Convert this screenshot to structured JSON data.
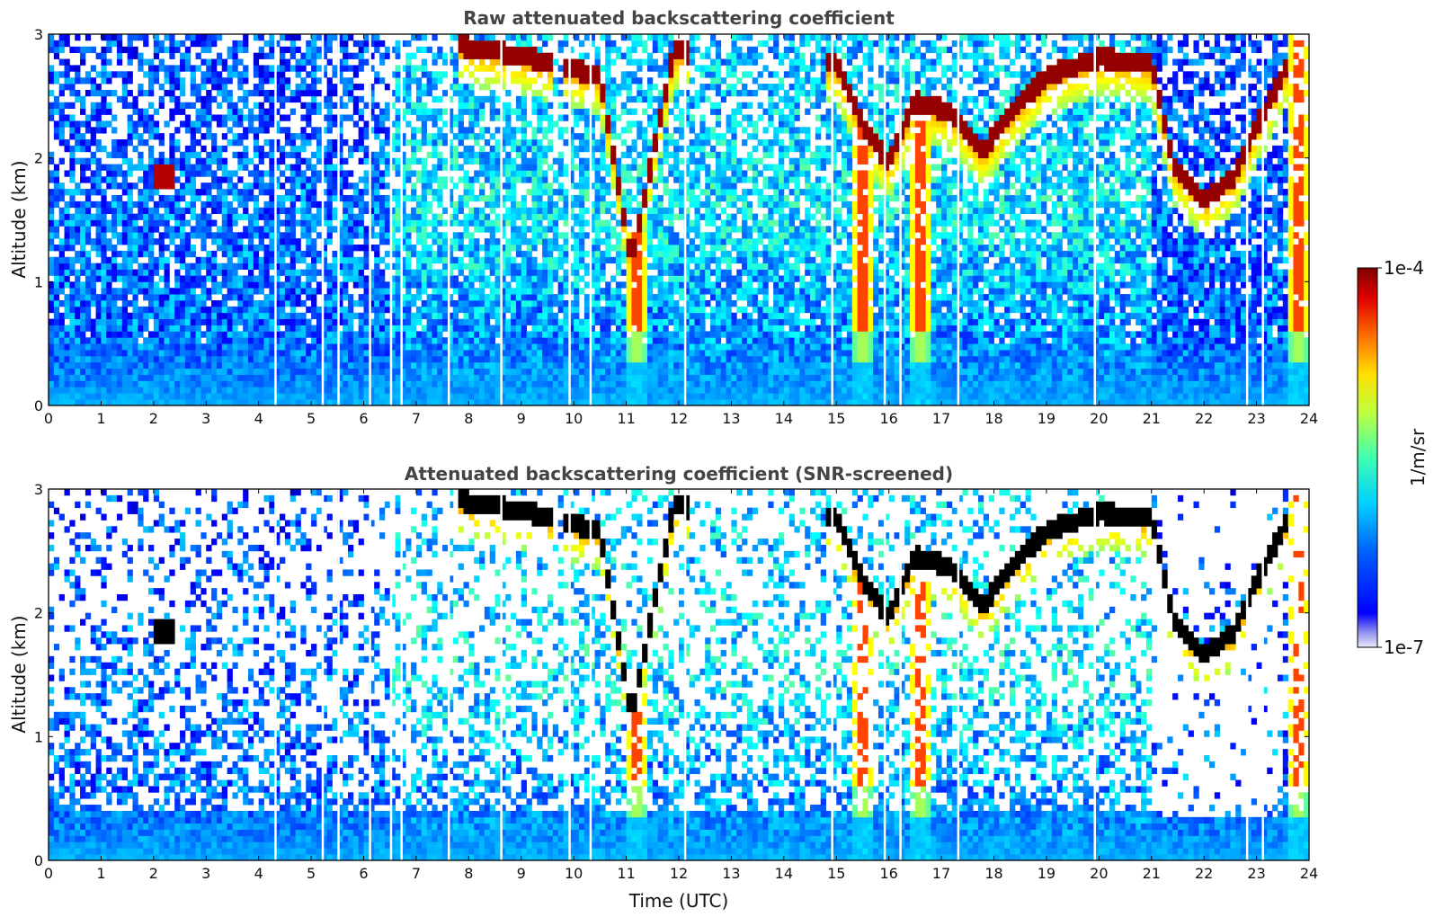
{
  "chart_data": [
    {
      "type": "heatmap",
      "title": "Raw attenuated backscattering coefficient",
      "xlabel": "",
      "ylabel": "Altitude (km)",
      "xlim": [
        0,
        24
      ],
      "ylim": [
        0,
        3
      ],
      "x_ticks": [
        "0",
        "1",
        "2",
        "3",
        "4",
        "5",
        "6",
        "7",
        "8",
        "9",
        "10",
        "11",
        "12",
        "13",
        "14",
        "15",
        "16",
        "17",
        "18",
        "19",
        "20",
        "21",
        "22",
        "23",
        "24"
      ],
      "y_ticks": [
        "0",
        "1",
        "2",
        "3"
      ],
      "screened": false
    },
    {
      "type": "heatmap",
      "title": "Attenuated backscattering coefficient (SNR-screened)",
      "xlabel": "Time (UTC)",
      "ylabel": "Altitude (km)",
      "xlim": [
        0,
        24
      ],
      "ylim": [
        0,
        3
      ],
      "x_ticks": [
        "0",
        "1",
        "2",
        "3",
        "4",
        "5",
        "6",
        "7",
        "8",
        "9",
        "10",
        "11",
        "12",
        "13",
        "14",
        "15",
        "16",
        "17",
        "18",
        "19",
        "20",
        "21",
        "22",
        "23",
        "24"
      ],
      "y_ticks": [
        "0",
        "1",
        "2",
        "3"
      ],
      "screened": true
    }
  ],
  "colorbar": {
    "label": "1/m/sr",
    "max_label": "1e-4",
    "min_label": "1e-7",
    "colormap": "jet",
    "scale": "log",
    "range": [
      1e-07,
      0.0001
    ]
  },
  "features": {
    "cloud_layer_top": [
      {
        "t": 7.8,
        "alt": 2.95
      },
      {
        "t": 8.5,
        "alt": 2.9
      },
      {
        "t": 9.2,
        "alt": 2.85
      },
      {
        "t": 10.5,
        "alt": 2.7
      },
      {
        "t": 11.1,
        "alt": 1.2
      },
      {
        "t": 11.9,
        "alt": 2.9
      },
      {
        "t": 15.0,
        "alt": 2.8
      },
      {
        "t": 15.5,
        "alt": 2.3
      },
      {
        "t": 16.0,
        "alt": 2.0
      },
      {
        "t": 16.5,
        "alt": 2.5
      },
      {
        "t": 17.2,
        "alt": 2.4
      },
      {
        "t": 17.8,
        "alt": 2.1
      },
      {
        "t": 18.3,
        "alt": 2.4
      },
      {
        "t": 19.0,
        "alt": 2.7
      },
      {
        "t": 20.0,
        "alt": 2.85
      },
      {
        "t": 21.0,
        "alt": 2.8
      },
      {
        "t": 21.4,
        "alt": 2.0
      },
      {
        "t": 22.0,
        "alt": 1.7
      },
      {
        "t": 22.6,
        "alt": 1.9
      },
      {
        "t": 23.0,
        "alt": 2.3
      },
      {
        "t": 23.6,
        "alt": 2.8
      }
    ],
    "precipitation_columns": [
      11.2,
      15.5,
      16.6,
      23.8
    ],
    "isolated_cloud": {
      "t": 2.2,
      "alt": 1.85
    }
  },
  "colors": {
    "jet": [
      "#00007f",
      "#0000ff",
      "#007fff",
      "#00ffff",
      "#7fff7f",
      "#ffff00",
      "#ff7f00",
      "#ff0000",
      "#7f0000"
    ],
    "saturated_screened": "#000000",
    "title_color": "#444444"
  }
}
